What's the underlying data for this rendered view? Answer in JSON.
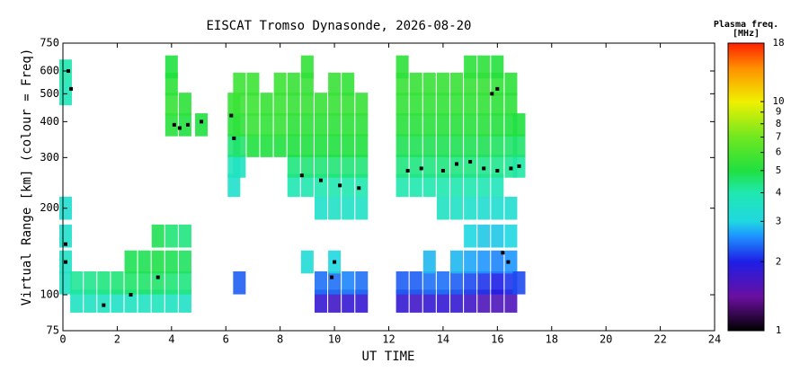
{
  "chart_data": {
    "type": "ionogram",
    "title": "EISCAT Tromso Dynasonde, 2026-08-20",
    "xlabel": "UT TIME",
    "ylabel": "Virtual Range [km] (colour = Freq)",
    "colorbar_title": "Plasma freq.",
    "colorbar_unit": "[MHz]",
    "xlim": [
      0,
      24
    ],
    "xticks": [
      0,
      2,
      4,
      6,
      8,
      10,
      12,
      14,
      16,
      18,
      20,
      22,
      24
    ],
    "ylim": [
      75,
      750
    ],
    "yticks": [
      75,
      100,
      200,
      300,
      400,
      500,
      600,
      750
    ],
    "ylog": true,
    "clim": [
      1,
      18
    ],
    "cticks": [
      1,
      2,
      3,
      4,
      5,
      6,
      7,
      8,
      9,
      10,
      18
    ],
    "clog": true,
    "colorscale": [
      [
        1,
        "#000000"
      ],
      [
        1.4,
        "#6a0fa0"
      ],
      [
        2,
        "#1e1ee6"
      ],
      [
        2.6,
        "#1e96ff"
      ],
      [
        3,
        "#20d8e0"
      ],
      [
        4,
        "#20e8b0"
      ],
      [
        5,
        "#20e040"
      ],
      [
        7,
        "#70e820"
      ],
      [
        10,
        "#f0f000"
      ],
      [
        14,
        "#ff9000"
      ],
      [
        18,
        "#ff2000"
      ]
    ],
    "columns": [
      {
        "x": 0.1,
        "y": [
          110,
          130,
          160,
          200,
          500,
          600
        ],
        "values": [
          3.5,
          3.5,
          3.4,
          3.3,
          3.8,
          4.0
        ]
      },
      {
        "x": 0.5,
        "y": [
          95,
          110
        ],
        "values": [
          3.6,
          4.2
        ]
      },
      {
        "x": 1.0,
        "y": [
          95,
          110
        ],
        "values": [
          3.6,
          4.3
        ]
      },
      {
        "x": 1.5,
        "y": [
          95,
          110
        ],
        "values": [
          3.6,
          4.4
        ]
      },
      {
        "x": 2.0,
        "y": [
          95,
          110
        ],
        "values": [
          3.5,
          4.5
        ]
      },
      {
        "x": 2.5,
        "y": [
          95,
          110,
          130
        ],
        "values": [
          3.6,
          4.6,
          4.8
        ]
      },
      {
        "x": 3.0,
        "y": [
          95,
          110,
          130
        ],
        "values": [
          3.6,
          4.6,
          4.8
        ]
      },
      {
        "x": 3.5,
        "y": [
          95,
          110,
          130,
          160
        ],
        "values": [
          3.7,
          4.6,
          4.9,
          4.8
        ]
      },
      {
        "x": 4.0,
        "y": [
          95,
          110,
          130,
          160,
          390,
          460,
          540,
          620
        ],
        "values": [
          3.6,
          4.5,
          4.8,
          4.5,
          5.2,
          5.5,
          5.3,
          5.0
        ]
      },
      {
        "x": 4.5,
        "y": [
          95,
          110,
          130,
          160,
          390,
          460
        ],
        "values": [
          3.5,
          4.4,
          4.7,
          4.4,
          5.0,
          5.3
        ]
      },
      {
        "x": 5.1,
        "y": [
          390
        ],
        "values": [
          5.0
        ]
      },
      {
        "x": 6.3,
        "y": [
          240,
          280,
          330,
          390,
          460
        ],
        "values": [
          3.4,
          3.7,
          4.5,
          5.2,
          5.5
        ]
      },
      {
        "x": 6.5,
        "y": [
          110,
          280,
          330,
          390,
          460,
          540
        ],
        "values": [
          2.3,
          3.6,
          4.6,
          5.3,
          5.6,
          5.6
        ]
      },
      {
        "x": 7.0,
        "y": [
          330,
          390,
          460,
          540
        ],
        "values": [
          5.0,
          5.5,
          5.6,
          5.6
        ]
      },
      {
        "x": 7.5,
        "y": [
          330,
          390,
          460
        ],
        "values": [
          5.0,
          5.4,
          5.5
        ]
      },
      {
        "x": 8.0,
        "y": [
          330,
          390,
          460,
          540
        ],
        "values": [
          5.0,
          5.5,
          5.6,
          5.6
        ]
      },
      {
        "x": 8.5,
        "y": [
          240,
          280,
          330,
          390,
          460,
          540
        ],
        "values": [
          3.9,
          4.4,
          5.0,
          5.3,
          5.5,
          5.5
        ]
      },
      {
        "x": 9.0,
        "y": [
          130,
          240,
          280,
          330,
          390,
          460,
          540,
          620
        ],
        "values": [
          3.2,
          4.0,
          4.5,
          5.0,
          5.3,
          5.5,
          5.5,
          5.4
        ]
      },
      {
        "x": 9.5,
        "y": [
          95,
          110,
          200,
          240,
          280,
          330,
          390,
          460
        ],
        "values": [
          1.8,
          2.4,
          3.4,
          4.0,
          4.5,
          5.0,
          5.3,
          5.5
        ]
      },
      {
        "x": 10.0,
        "y": [
          95,
          110,
          130,
          200,
          240,
          280,
          330,
          390,
          460,
          540
        ],
        "values": [
          1.7,
          2.4,
          3.0,
          3.5,
          4.0,
          4.5,
          5.0,
          5.3,
          5.5,
          5.5
        ]
      },
      {
        "x": 10.5,
        "y": [
          95,
          110,
          200,
          240,
          280,
          330,
          390,
          460,
          540
        ],
        "values": [
          1.8,
          2.5,
          3.5,
          4.0,
          4.5,
          5.0,
          5.3,
          5.5,
          5.4
        ]
      },
      {
        "x": 11.0,
        "y": [
          95,
          110,
          200,
          240,
          280,
          330,
          390,
          460
        ],
        "values": [
          1.8,
          2.4,
          3.5,
          4.0,
          4.5,
          5.0,
          5.3,
          5.5
        ]
      },
      {
        "x": 12.5,
        "y": [
          95,
          110,
          240,
          280,
          330,
          390,
          460,
          540,
          620
        ],
        "values": [
          1.8,
          2.3,
          4.0,
          4.4,
          4.8,
          5.2,
          5.4,
          5.5,
          5.3
        ]
      },
      {
        "x": 13.0,
        "y": [
          95,
          110,
          240,
          280,
          330,
          390,
          460,
          540
        ],
        "values": [
          1.7,
          2.3,
          4.0,
          4.4,
          4.8,
          5.2,
          5.4,
          5.5
        ]
      },
      {
        "x": 13.5,
        "y": [
          95,
          110,
          130,
          240,
          280,
          330,
          390,
          460,
          540
        ],
        "values": [
          1.8,
          2.4,
          2.8,
          4.0,
          4.4,
          4.8,
          5.2,
          5.4,
          5.5
        ]
      },
      {
        "x": 14.0,
        "y": [
          95,
          110,
          200,
          240,
          280,
          330,
          390,
          460,
          540
        ],
        "values": [
          1.8,
          2.4,
          3.6,
          4.0,
          4.4,
          4.8,
          5.2,
          5.4,
          5.5
        ]
      },
      {
        "x": 14.5,
        "y": [
          95,
          110,
          130,
          200,
          240,
          280,
          330,
          390,
          460,
          540
        ],
        "values": [
          1.8,
          2.3,
          2.8,
          3.5,
          4.0,
          4.4,
          4.8,
          5.2,
          5.4,
          5.5
        ]
      },
      {
        "x": 15.0,
        "y": [
          95,
          110,
          130,
          160,
          200,
          240,
          280,
          330,
          390,
          460,
          540,
          620
        ],
        "values": [
          1.7,
          2.2,
          2.7,
          3.0,
          3.4,
          4.0,
          4.4,
          4.8,
          5.2,
          5.4,
          5.5,
          5.3
        ]
      },
      {
        "x": 15.5,
        "y": [
          95,
          110,
          130,
          160,
          200,
          240,
          280,
          330,
          390,
          460,
          540,
          620
        ],
        "values": [
          1.6,
          2.1,
          2.6,
          2.9,
          3.3,
          3.9,
          4.3,
          4.8,
          5.2,
          5.4,
          5.5,
          5.3
        ]
      },
      {
        "x": 16.0,
        "y": [
          95,
          110,
          130,
          160,
          200,
          240,
          280,
          330,
          390,
          460,
          540,
          620
        ],
        "values": [
          1.6,
          2.0,
          2.5,
          2.9,
          3.3,
          3.8,
          4.3,
          4.7,
          5.1,
          5.3,
          5.4,
          5.1
        ]
      },
      {
        "x": 16.5,
        "y": [
          95,
          110,
          130,
          160,
          200,
          280,
          330,
          390,
          460,
          540
        ],
        "values": [
          1.6,
          2.1,
          2.6,
          3.0,
          3.3,
          4.2,
          4.6,
          5.0,
          5.3,
          5.3
        ]
      },
      {
        "x": 16.8,
        "y": [
          110,
          280,
          330,
          390
        ],
        "values": [
          2.2,
          4.1,
          4.6,
          5.0
        ]
      }
    ],
    "trace": {
      "color": "#000000",
      "x": [
        0.1,
        0.1,
        0.2,
        0.3,
        1.5,
        2.5,
        3.5,
        4.1,
        4.3,
        4.6,
        5.1,
        6.2,
        6.3,
        8.8,
        9.5,
        9.9,
        10.0,
        10.2,
        10.9,
        12.7,
        13.2,
        14.0,
        14.5,
        15.0,
        15.5,
        15.8,
        16.0,
        16.0,
        16.2,
        16.4,
        16.5,
        16.8
      ],
      "y": [
        150,
        130,
        600,
        520,
        92,
        100,
        115,
        390,
        380,
        390,
        400,
        420,
        350,
        260,
        250,
        115,
        130,
        240,
        235,
        270,
        275,
        270,
        285,
        290,
        275,
        500,
        520,
        270,
        140,
        130,
        275,
        280
      ]
    }
  }
}
